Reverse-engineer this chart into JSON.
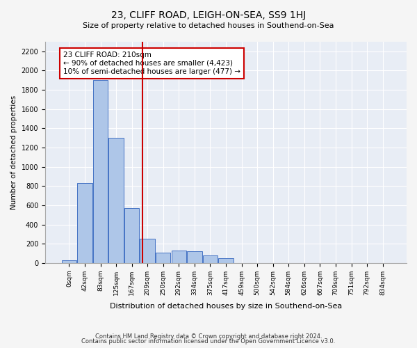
{
  "title": "23, CLIFF ROAD, LEIGH-ON-SEA, SS9 1HJ",
  "subtitle": "Size of property relative to detached houses in Southend-on-Sea",
  "xlabel": "Distribution of detached houses by size in Southend-on-Sea",
  "ylabel": "Number of detached properties",
  "bar_values": [
    30,
    830,
    1900,
    1300,
    570,
    250,
    110,
    130,
    120,
    80,
    50,
    0,
    0,
    0,
    0,
    0,
    0,
    0,
    0,
    0,
    0
  ],
  "bar_labels": [
    "0sqm",
    "42sqm",
    "83sqm",
    "125sqm",
    "167sqm",
    "209sqm",
    "250sqm",
    "292sqm",
    "334sqm",
    "375sqm",
    "417sqm",
    "459sqm",
    "500sqm",
    "542sqm",
    "584sqm",
    "626sqm",
    "667sqm",
    "709sqm",
    "751sqm",
    "792sqm",
    "834sqm"
  ],
  "bar_color": "#aec6e8",
  "bar_edge_color": "#4472c4",
  "background_color": "#e8edf5",
  "grid_color": "#ffffff",
  "annotation_text": "23 CLIFF ROAD: 210sqm\n← 90% of detached houses are smaller (4,423)\n10% of semi-detached houses are larger (477) →",
  "vline_x": 4.7,
  "vline_color": "#cc0000",
  "annotation_box_color": "#ffffff",
  "annotation_box_edge": "#cc0000",
  "ylim": [
    0,
    2300
  ],
  "yticks": [
    0,
    200,
    400,
    600,
    800,
    1000,
    1200,
    1400,
    1600,
    1800,
    2000,
    2200
  ],
  "footer_line1": "Contains HM Land Registry data © Crown copyright and database right 2024.",
  "footer_line2": "Contains public sector information licensed under the Open Government Licence v3.0."
}
